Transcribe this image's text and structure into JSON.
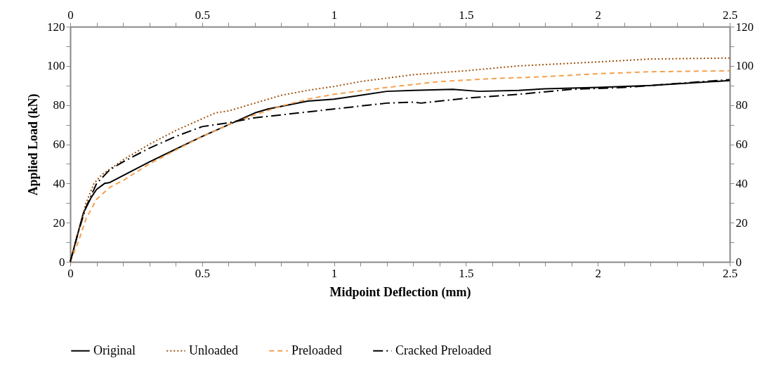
{
  "chart_data": {
    "type": "line",
    "xlabel": "Midpoint Deflection (mm)",
    "ylabel": "Applied Load (kN)",
    "xlim": [
      0,
      2.5
    ],
    "ylim": [
      0,
      120
    ],
    "xticks": [
      0,
      {
        "value": 0.1,
        "label": null
      },
      {
        "value": 0.2,
        "label": null
      },
      {
        "value": 0.3,
        "label": null
      },
      {
        "value": 0.4,
        "label": null
      },
      0.5,
      {
        "value": 0.6,
        "label": null
      },
      {
        "value": 0.7,
        "label": null
      },
      {
        "value": 0.8,
        "label": null
      },
      {
        "value": 0.9,
        "label": null
      },
      1,
      {
        "value": 1.1,
        "label": null
      },
      {
        "value": 1.2,
        "label": null
      },
      {
        "value": 1.3,
        "label": null
      },
      {
        "value": 1.4,
        "label": null
      },
      1.5,
      {
        "value": 1.6,
        "label": null
      },
      {
        "value": 1.7,
        "label": null
      },
      {
        "value": 1.8,
        "label": null
      },
      {
        "value": 1.9,
        "label": null
      },
      2,
      {
        "value": 2.1,
        "label": null
      },
      {
        "value": 2.2,
        "label": null
      },
      {
        "value": 2.3,
        "label": null
      },
      {
        "value": 2.4,
        "label": null
      },
      2.5
    ],
    "yticks": [
      0,
      {
        "value": 10,
        "label": null
      },
      20,
      {
        "value": 30,
        "label": null
      },
      40,
      {
        "value": 50,
        "label": null
      },
      60,
      {
        "value": 70,
        "label": null
      },
      80,
      {
        "value": 90,
        "label": null
      },
      100,
      {
        "value": 110,
        "label": null
      },
      120
    ],
    "x2lim": [
      0,
      2.5
    ],
    "x2ticks": [
      0,
      {
        "value": 0.1,
        "label": null
      },
      {
        "value": 0.2,
        "label": null
      },
      {
        "value": 0.3,
        "label": null
      },
      {
        "value": 0.4,
        "label": null
      },
      0.5,
      {
        "value": 0.6,
        "label": null
      },
      {
        "value": 0.7,
        "label": null
      },
      {
        "value": 0.8,
        "label": null
      },
      {
        "value": 0.9,
        "label": null
      },
      1,
      {
        "value": 1.1,
        "label": null
      },
      {
        "value": 1.2,
        "label": null
      },
      {
        "value": 1.3,
        "label": null
      },
      {
        "value": 1.4,
        "label": null
      },
      1.5,
      {
        "value": 1.6,
        "label": null
      },
      {
        "value": 1.7,
        "label": null
      },
      {
        "value": 1.8,
        "label": null
      },
      {
        "value": 1.9,
        "label": null
      },
      2,
      {
        "value": 2.1,
        "label": null
      },
      {
        "value": 2.2,
        "label": null
      },
      {
        "value": 2.3,
        "label": null
      },
      {
        "value": 2.4,
        "label": null
      },
      2.5
    ],
    "y2lim": [
      0,
      120
    ],
    "y2ticks": [
      0,
      {
        "value": 10,
        "label": null
      },
      20,
      {
        "value": 30,
        "label": null
      },
      40,
      {
        "value": 50,
        "label": null
      },
      60,
      {
        "value": 70,
        "label": null
      },
      80,
      {
        "value": 90,
        "label": null
      },
      100,
      {
        "value": 110,
        "label": null
      },
      120
    ],
    "grid": false,
    "legend": "bottom",
    "marker": "none",
    "series": [
      {
        "name": "Original",
        "color": "#000000",
        "line_style": "solid",
        "x": [
          0,
          0.02,
          0.05,
          0.08,
          0.1,
          0.13,
          0.15,
          0.2,
          0.3,
          0.4,
          0.5,
          0.6,
          0.7,
          0.75,
          0.9,
          1,
          1.1,
          1.2,
          1.3,
          1.45,
          1.55,
          1.7,
          1.8,
          2,
          2.2,
          2.5
        ],
        "values": [
          0,
          10,
          25,
          33,
          37,
          40,
          40.5,
          44,
          51,
          57.5,
          64,
          70,
          76,
          78,
          82,
          83,
          85,
          87,
          87.5,
          88,
          87,
          87.5,
          88.3,
          89,
          90,
          92.5
        ]
      },
      {
        "name": "Unloaded",
        "color": "#a0520f",
        "line_style": "dotted",
        "x": [
          0,
          0.03,
          0.06,
          0.09,
          0.12,
          0.2,
          0.3,
          0.4,
          0.5,
          0.55,
          0.6,
          0.7,
          0.8,
          0.9,
          1,
          1.1,
          1.3,
          1.5,
          1.7,
          2,
          2.2,
          2.5
        ],
        "values": [
          0,
          15,
          30,
          40,
          44.5,
          52,
          60,
          67,
          73,
          76,
          77,
          81,
          85,
          87.5,
          89.5,
          92,
          95.5,
          97.5,
          100,
          102,
          103.5,
          104
        ]
      },
      {
        "name": "Preloaded",
        "color": "#f4a050",
        "line_style": "dashed",
        "x": [
          0,
          0.03,
          0.06,
          0.1,
          0.15,
          0.2,
          0.3,
          0.4,
          0.5,
          0.6,
          0.7,
          0.8,
          0.9,
          1,
          1.2,
          1.4,
          1.6,
          1.8,
          2,
          2.2,
          2.5
        ],
        "values": [
          0,
          10,
          22,
          32,
          38,
          41.5,
          50,
          57,
          64,
          70,
          75,
          79.5,
          83,
          85.5,
          89,
          92,
          93.5,
          94.5,
          96,
          97,
          97.5
        ]
      },
      {
        "name": "Cracked Preloaded",
        "color": "#000000",
        "line_style": "dashdot",
        "x": [
          0,
          0.03,
          0.06,
          0.1,
          0.15,
          0.2,
          0.3,
          0.4,
          0.5,
          0.6,
          0.7,
          0.8,
          1,
          1.2,
          1.3,
          1.33,
          1.5,
          1.7,
          1.9,
          2.1,
          2.3,
          2.5
        ],
        "values": [
          0,
          15,
          28,
          40,
          47,
          51,
          58,
          64,
          69,
          71,
          73.5,
          75,
          78,
          81,
          81.5,
          81,
          83.5,
          85.5,
          88,
          89,
          91,
          93
        ]
      }
    ]
  }
}
